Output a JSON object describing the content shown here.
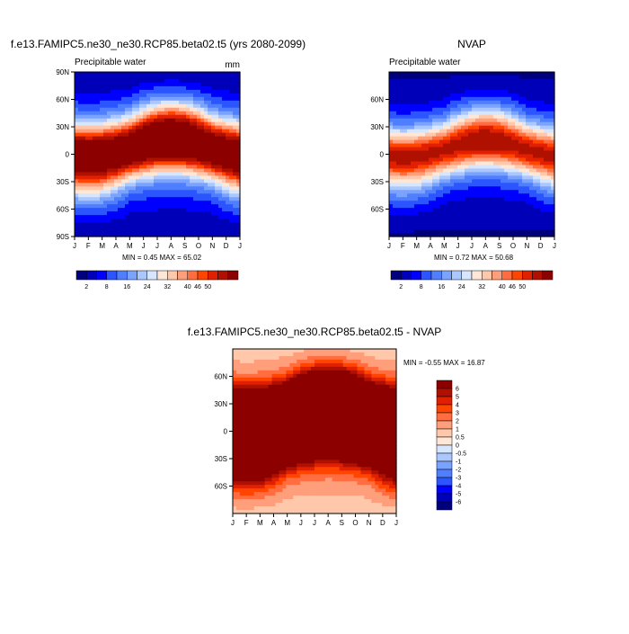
{
  "chart_data": [
    {
      "type": "heatmap",
      "title": "f.e13.FAMIPC5.ne30_ne30.RCP85.beta02.t5 (yrs 2080-2099)",
      "left_label": "Precipitable water",
      "right_label": "mm",
      "x_ticks": [
        "J",
        "F",
        "M",
        "A",
        "M",
        "J",
        "J",
        "A",
        "S",
        "O",
        "N",
        "D",
        "J"
      ],
      "y_ticks": [
        "90N",
        "60N",
        "30N",
        "0",
        "30S",
        "60S",
        "90S"
      ],
      "ylim": [
        -90,
        90
      ],
      "min_text": "MIN =   0.45 MAX =  65.02",
      "min": 0.45,
      "max": 65.02,
      "contour_levels": [
        2,
        5,
        8,
        12,
        16,
        20,
        24,
        28,
        32,
        36,
        40,
        43,
        46,
        50,
        55
      ],
      "colorbar_labels": [
        "2",
        "8",
        "16",
        "24",
        "32",
        "40",
        "46",
        "50"
      ]
    },
    {
      "type": "heatmap",
      "title": "NVAP",
      "left_label": "Precipitable water",
      "x_ticks": [
        "J",
        "F",
        "M",
        "A",
        "M",
        "J",
        "J",
        "A",
        "S",
        "O",
        "N",
        "D",
        "J"
      ],
      "y_ticks": [
        "60N",
        "30N",
        "0",
        "30S",
        "60S"
      ],
      "ylim": [
        -90,
        90
      ],
      "min_text": "MIN =   0.72 MAX =  50.68",
      "min": 0.72,
      "max": 50.68,
      "contour_levels": [
        2,
        5,
        8,
        12,
        16,
        20,
        24,
        28,
        32,
        36,
        40,
        43,
        46,
        50,
        55
      ],
      "colorbar_labels": [
        "2",
        "8",
        "16",
        "24",
        "32",
        "40",
        "46",
        "50"
      ]
    },
    {
      "type": "heatmap",
      "title": "f.e13.FAMIPC5.ne30_ne30.RCP85.beta02.t5 - NVAP",
      "x_ticks": [
        "J",
        "F",
        "M",
        "A",
        "M",
        "J",
        "J",
        "A",
        "S",
        "O",
        "N",
        "D",
        "J"
      ],
      "y_ticks": [
        "60N",
        "30N",
        "0",
        "30S",
        "60S"
      ],
      "ylim": [
        -90,
        90
      ],
      "min_text": "MIN =  -0.55 MAX =  16.87",
      "min": -0.55,
      "max": 16.87,
      "contour_levels": [
        -6,
        -5,
        -4,
        -3,
        -2,
        -1,
        -0.5,
        0,
        0.5,
        1,
        2,
        3,
        4,
        5,
        6
      ],
      "colorbar_labels": [
        "6",
        "5",
        "4",
        "3",
        "2",
        "1",
        "0.5",
        "0",
        "-0.5",
        "-1",
        "-2",
        "-3",
        "-4",
        "-5",
        "-6"
      ]
    }
  ],
  "palette": [
    "#00007f",
    "#0000b8",
    "#0000ff",
    "#2d55ff",
    "#4f7eff",
    "#7aa3ff",
    "#aac8ff",
    "#d7e6ff",
    "#ffe7d7",
    "#ffc8aa",
    "#ff9e7a",
    "#ff6d40",
    "#ff4500",
    "#e02000",
    "#b01000",
    "#8c0000"
  ]
}
